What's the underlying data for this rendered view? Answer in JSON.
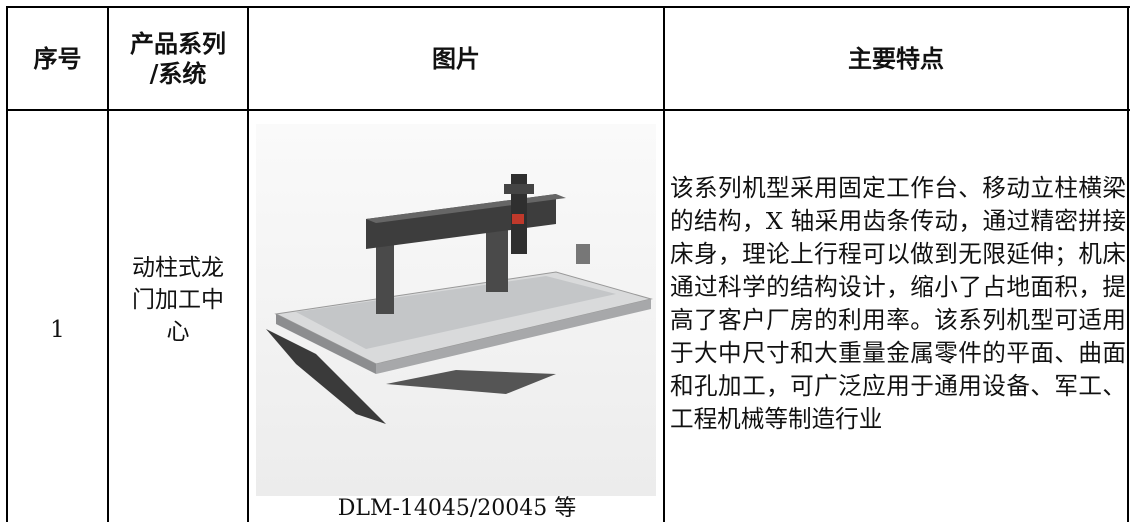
{
  "table": {
    "header": [
      "序号",
      [
        "产品系列",
        "/系统"
      ],
      "图片",
      "主要特点"
    ],
    "rows": [
      {
        "index": "1",
        "name": "动柱式龙门加工中心",
        "caption": "DLM-14045/20045 等",
        "features": "该系列机型采用固定工作台、移动立柱横梁的结构，X 轴采用齿条传动，通过精密拼接床身，理论上行程可以做到无限延伸；机床通过科学的结构设计，缩小了占地面积，提高了客户厂房的利用率。该系列机型可适用于大中尺寸和大重量金属零件的平面、曲面和孔加工，可广泛应用于通用设备、军工、工程机械等制造行业"
      }
    ]
  }
}
